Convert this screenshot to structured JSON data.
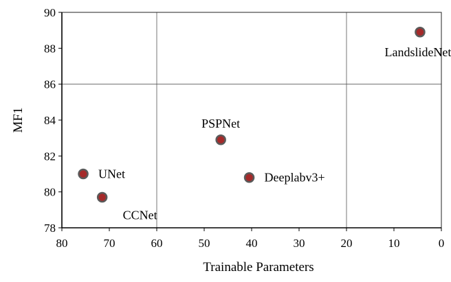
{
  "chart_data": {
    "type": "scatter",
    "xlabel": "Trainable  Parameters",
    "ylabel": "MF1",
    "xlim": [
      80,
      0
    ],
    "ylim": [
      78,
      90
    ],
    "x_ticks": [
      "80",
      "70",
      "60",
      "50",
      "40",
      "30",
      "20",
      "10",
      "0"
    ],
    "y_ticks": [
      "78",
      "80",
      "82",
      "84",
      "86",
      "88",
      "90"
    ],
    "grid": {
      "vertical_lines_at": [
        60,
        20
      ],
      "horizontal_lines_at": [
        86
      ]
    },
    "colors": {
      "marker_fill": "#a52a2a",
      "marker_edge": "#5a5a5a"
    },
    "points": [
      {
        "label": "UNet",
        "x": 75.5,
        "y": 81.0,
        "label_pos": "right"
      },
      {
        "label": "CCNet",
        "x": 71.5,
        "y": 79.7,
        "label_pos": "below-right"
      },
      {
        "label": "PSPNet",
        "x": 46.5,
        "y": 82.9,
        "label_pos": "above"
      },
      {
        "label": "Deeplabv3+",
        "x": 40.5,
        "y": 80.8,
        "label_pos": "right"
      },
      {
        "label": "LandslideNet",
        "x": 4.5,
        "y": 88.9,
        "label_pos": "below"
      }
    ]
  }
}
